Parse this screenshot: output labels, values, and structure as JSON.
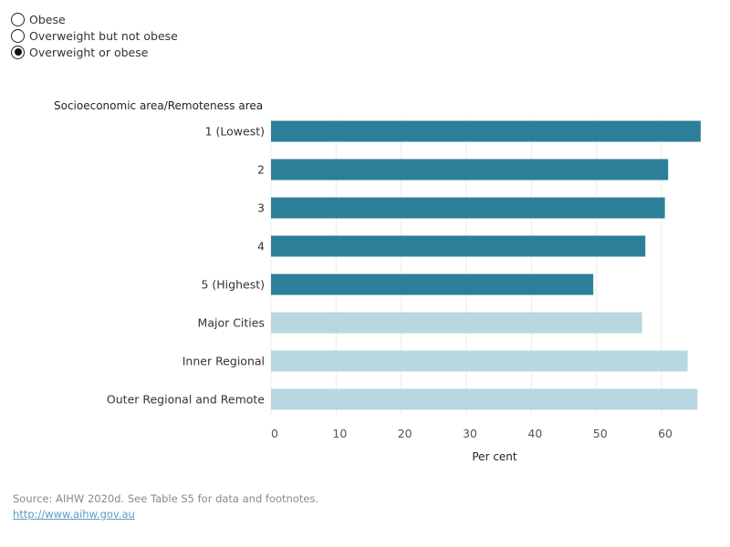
{
  "filter": {
    "options": [
      "Obese",
      "Overweight but not obese",
      "Overweight or obese"
    ],
    "selected_index": 2
  },
  "colors": {
    "socioeconomic": "#2d7f99",
    "remoteness": "#b8d7e0",
    "gridline": "#ebebeb"
  },
  "chart_data": {
    "type": "bar",
    "orientation": "horizontal",
    "ylabel": "Socioeconomic area/Remoteness area",
    "xlabel": "Per cent",
    "categories": [
      "1 (Lowest)",
      "2",
      "3",
      "4",
      "5 (Highest)",
      "Major Cities",
      "Inner Regional",
      "Outer Regional and Remote"
    ],
    "values": [
      66,
      61,
      60.5,
      57.5,
      49.5,
      57,
      64,
      65.5
    ],
    "groups": [
      "socioeconomic",
      "socioeconomic",
      "socioeconomic",
      "socioeconomic",
      "socioeconomic",
      "remoteness",
      "remoteness",
      "remoteness"
    ],
    "xlim": [
      0,
      67
    ],
    "xticks": [
      0,
      10,
      20,
      30,
      40,
      50,
      60
    ],
    "grid": true
  },
  "source": {
    "text": "Source: AIHW 2020d. See Table S5 for data and footnotes.",
    "link": "http://www.aihw.gov.au"
  }
}
